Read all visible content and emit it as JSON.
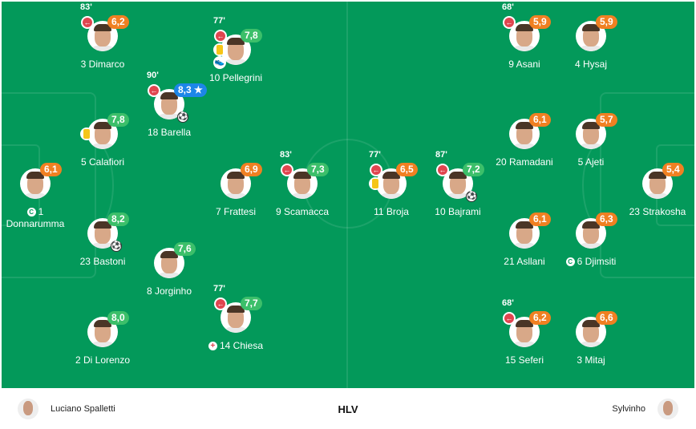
{
  "colors": {
    "pitch": "#03995a",
    "rating_green": "#3cbf6a",
    "rating_orange": "#f08022",
    "rating_blue": "#1d86e8",
    "sub_red": "#e0454f",
    "yellow_card": "#f5c518"
  },
  "home_team": {
    "coach": "Luciano Spalletti",
    "players": [
      {
        "number": "3",
        "name": "Dimarco",
        "rating": "6,2",
        "rating_color": "orange",
        "sub_minute": "83'"
      },
      {
        "number": "10",
        "name": "Pellegrini",
        "rating": "7,8",
        "rating_color": "green",
        "sub_minute": "77'",
        "yellow_card": true,
        "assist": true
      },
      {
        "number": "18",
        "name": "Barella",
        "rating": "8,3",
        "rating_color": "blue",
        "star": true,
        "sub_minute": "90'",
        "goal": true
      },
      {
        "number": "5",
        "name": "Calafiori",
        "rating": "7,8",
        "rating_color": "green",
        "yellow_card": true
      },
      {
        "number": "1",
        "name": "Donnarumma",
        "rating": "6,1",
        "rating_color": "orange",
        "captain": true
      },
      {
        "number": "7",
        "name": "Frattesi",
        "rating": "6,9",
        "rating_color": "orange"
      },
      {
        "number": "9",
        "name": "Scamacca",
        "rating": "7,3",
        "rating_color": "green",
        "sub_minute": "83'"
      },
      {
        "number": "23",
        "name": "Bastoni",
        "rating": "8,2",
        "rating_color": "green",
        "goal": true
      },
      {
        "number": "8",
        "name": "Jorginho",
        "rating": "7,6",
        "rating_color": "green"
      },
      {
        "number": "2",
        "name": "Di Lorenzo",
        "rating": "8,0",
        "rating_color": "green"
      },
      {
        "number": "14",
        "name": "Chiesa",
        "rating": "7,7",
        "rating_color": "green",
        "sub_minute": "77'",
        "injury": true
      }
    ]
  },
  "away_team": {
    "coach": "Sylvinho",
    "players": [
      {
        "number": "9",
        "name": "Asani",
        "rating": "5,9",
        "rating_color": "orange",
        "sub_minute": "68'"
      },
      {
        "number": "4",
        "name": "Hysaj",
        "rating": "5,9",
        "rating_color": "orange"
      },
      {
        "number": "20",
        "name": "Ramadani",
        "rating": "6,1",
        "rating_color": "orange"
      },
      {
        "number": "5",
        "name": "Ajeti",
        "rating": "5,7",
        "rating_color": "orange"
      },
      {
        "number": "11",
        "name": "Broja",
        "rating": "6,5",
        "rating_color": "orange",
        "sub_minute": "77'",
        "yellow_card": true
      },
      {
        "number": "10",
        "name": "Bajrami",
        "rating": "7,2",
        "rating_color": "green",
        "sub_minute": "87'",
        "goal": true
      },
      {
        "number": "23",
        "name": "Strakosha",
        "rating": "5,4",
        "rating_color": "orange"
      },
      {
        "number": "21",
        "name": "Asllani",
        "rating": "6,1",
        "rating_color": "orange"
      },
      {
        "number": "6",
        "name": "Djimsiti",
        "rating": "6,3",
        "rating_color": "orange",
        "captain": true
      },
      {
        "number": "15",
        "name": "Seferi",
        "rating": "6,2",
        "rating_color": "orange",
        "sub_minute": "68'"
      },
      {
        "number": "3",
        "name": "Mitaj",
        "rating": "6,6",
        "rating_color": "orange"
      }
    ]
  },
  "footer": {
    "center_label": "HLV"
  }
}
